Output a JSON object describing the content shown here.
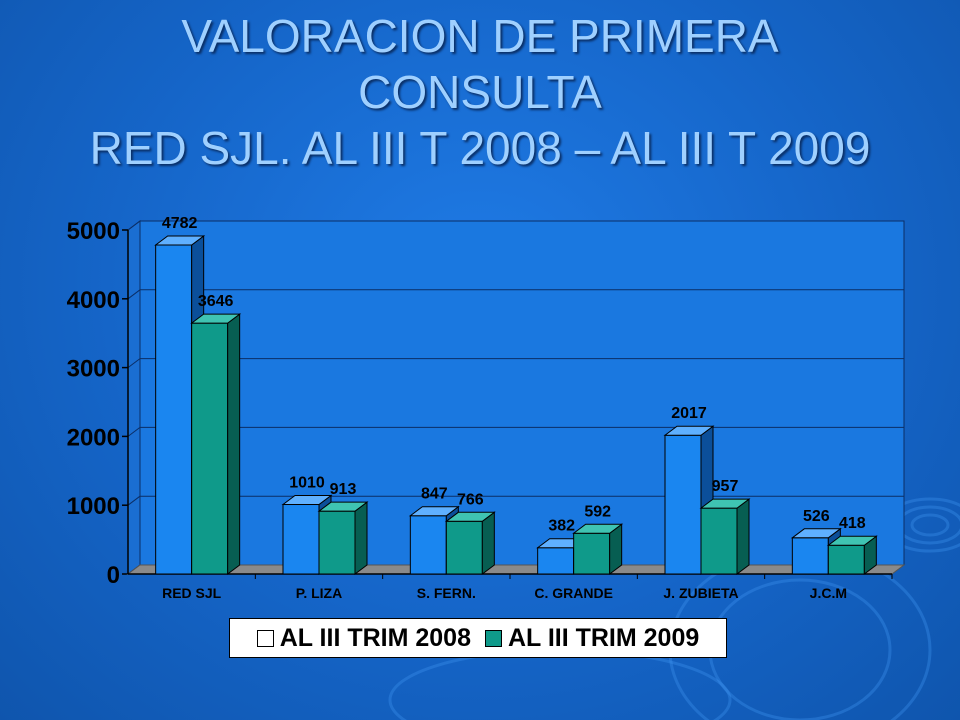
{
  "title_lines": [
    "VALORACION DE PRIMERA",
    "CONSULTA",
    "RED SJL. AL III T 2008 – AL III T 2009"
  ],
  "colors": {
    "series_2008": "#1a86f0",
    "series_2009": "#0f9a8a",
    "background": "#1565c8",
    "title": "#9fd0ff",
    "floor": "#8a8a8a"
  },
  "chart_data": {
    "type": "bar",
    "title": "",
    "xlabel": "",
    "ylabel": "",
    "categories": [
      "RED SJL",
      "P. LIZA",
      "S. FERN.",
      "C. GRANDE",
      "J. ZUBIETA",
      "J.C.M"
    ],
    "series": [
      {
        "name": "AL III TRIM 2008",
        "values": [
          4782,
          1010,
          847,
          382,
          2017,
          526
        ]
      },
      {
        "name": "AL III TRIM 2009",
        "values": [
          3646,
          913,
          766,
          592,
          957,
          418
        ]
      }
    ],
    "ylim": [
      0,
      5000
    ],
    "yticks": [
      "0",
      "1000",
      "2000",
      "3000",
      "4000",
      "5000"
    ],
    "data_labels": [
      [
        "4782",
        "1010",
        "847",
        "382",
        "2017",
        "526"
      ],
      [
        "3646",
        "913",
        "766",
        "592",
        "957",
        "418"
      ]
    ],
    "grid": true,
    "legend_position": "bottom"
  }
}
